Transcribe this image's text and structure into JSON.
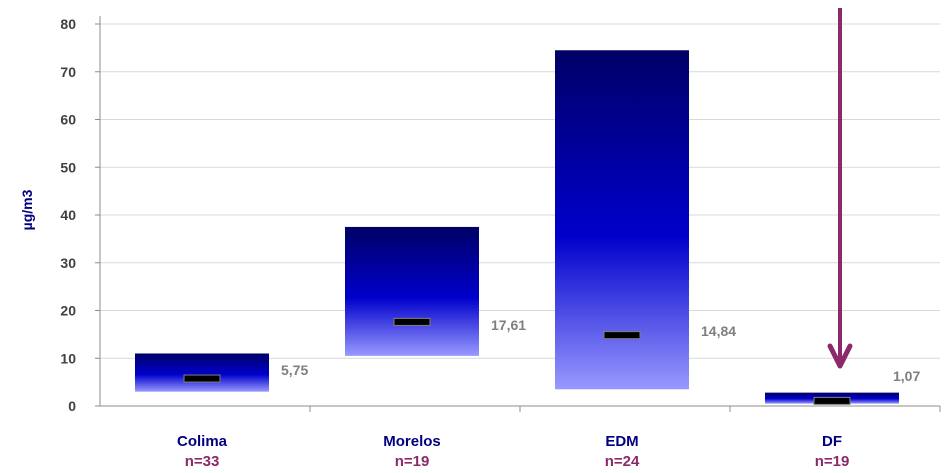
{
  "chart_data": {
    "type": "bar",
    "chart_style": "floating-range-with-mean-marker",
    "ylabel": "µg/m3",
    "ylim": [
      0,
      80
    ],
    "yticks": [
      "0",
      "10",
      "20",
      "30",
      "40",
      "50",
      "60",
      "70",
      "80"
    ],
    "grid": true,
    "legend": "none",
    "categories": [
      {
        "label": "Colima",
        "n_label": "n=33",
        "min": 3.0,
        "max": 11.0,
        "mean": 5.75,
        "value_label": "5,75"
      },
      {
        "label": "Morelos",
        "n_label": "n=19",
        "min": 10.5,
        "max": 37.5,
        "mean": 17.61,
        "value_label": "17,61"
      },
      {
        "label": "EDM",
        "n_label": "n=24",
        "min": 3.5,
        "max": 74.5,
        "mean": 14.84,
        "value_label": "14,84"
      },
      {
        "label": "DF",
        "n_label": "n=19",
        "min": 0.5,
        "max": 2.8,
        "mean": 1.07,
        "value_label": "1,07"
      }
    ],
    "annotation": {
      "type": "arrow",
      "target_category": "DF",
      "color": "#8b2a6a"
    },
    "colors": {
      "bar_top": "#000066",
      "bar_mid": "#0000cc",
      "bar_bottom": "#9999ff",
      "category_label": "#000080",
      "n_label": "#8b2a6a",
      "value_label": "#7f7f7f",
      "ylabel": "#000080",
      "grid": "#d9d9d9",
      "mean_marker": "#000000"
    }
  }
}
